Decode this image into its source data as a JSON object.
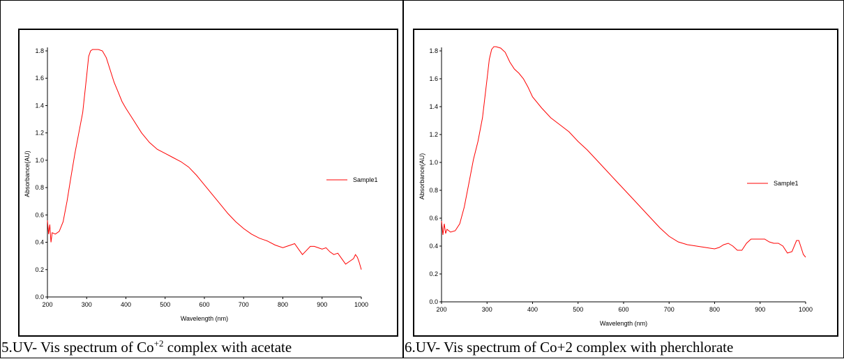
{
  "charts": [
    {
      "caption_pre": "5.UV- Vis spectrum of Co",
      "caption_sup": "+2",
      "caption_post": " complex with acetate"
    },
    {
      "caption_pre": "6.UV- Vis spectrum of Co+2 complex with pherchlorate",
      "caption_sup": "",
      "caption_post": ""
    }
  ],
  "chart_data": [
    {
      "type": "line",
      "xlabel": "Wavelength (nm)",
      "ylabel": "Absorbance(AU)",
      "xlim": [
        200,
        1000
      ],
      "ylim": [
        0.0,
        1.8
      ],
      "xticks": [
        200,
        300,
        400,
        500,
        600,
        700,
        800,
        900,
        1000
      ],
      "yticks": [
        0.0,
        0.2,
        0.4,
        0.6,
        0.8,
        1.0,
        1.2,
        1.4,
        1.6,
        1.8
      ],
      "grid": false,
      "legend_position": "right",
      "line_color": "#ff0000",
      "series": [
        {
          "name": "Sample1",
          "x": [
            200,
            203,
            206,
            209,
            212,
            220,
            230,
            240,
            250,
            260,
            270,
            280,
            290,
            300,
            305,
            310,
            315,
            320,
            330,
            340,
            350,
            360,
            370,
            380,
            390,
            400,
            420,
            440,
            460,
            480,
            500,
            520,
            540,
            560,
            580,
            600,
            620,
            640,
            660,
            680,
            700,
            720,
            740,
            760,
            780,
            800,
            810,
            820,
            830,
            840,
            850,
            860,
            870,
            880,
            890,
            900,
            910,
            920,
            930,
            940,
            950,
            960,
            970,
            980,
            985,
            990,
            995,
            1000
          ],
          "y": [
            0.56,
            0.46,
            0.53,
            0.4,
            0.47,
            0.46,
            0.48,
            0.55,
            0.7,
            0.88,
            1.05,
            1.2,
            1.35,
            1.62,
            1.76,
            1.8,
            1.81,
            1.81,
            1.81,
            1.8,
            1.75,
            1.66,
            1.57,
            1.5,
            1.43,
            1.38,
            1.29,
            1.2,
            1.13,
            1.08,
            1.05,
            1.02,
            0.99,
            0.95,
            0.89,
            0.82,
            0.75,
            0.68,
            0.61,
            0.55,
            0.5,
            0.46,
            0.43,
            0.41,
            0.38,
            0.36,
            0.37,
            0.38,
            0.39,
            0.35,
            0.31,
            0.34,
            0.37,
            0.37,
            0.36,
            0.35,
            0.36,
            0.33,
            0.31,
            0.32,
            0.28,
            0.24,
            0.26,
            0.28,
            0.31,
            0.29,
            0.25,
            0.2
          ]
        }
      ]
    },
    {
      "type": "line",
      "xlabel": "Wavelength (nm)",
      "ylabel": "Absorbance(AU)",
      "xlim": [
        200,
        1000
      ],
      "ylim": [
        0.0,
        1.8
      ],
      "xticks": [
        200,
        300,
        400,
        500,
        600,
        700,
        800,
        900,
        1000
      ],
      "yticks": [
        0.0,
        0.2,
        0.4,
        0.6,
        0.8,
        1.0,
        1.2,
        1.4,
        1.6,
        1.8
      ],
      "grid": false,
      "legend_position": "right",
      "line_color": "#ff0000",
      "series": [
        {
          "name": "Sample1",
          "x": [
            200,
            203,
            206,
            209,
            212,
            220,
            230,
            240,
            250,
            260,
            270,
            280,
            290,
            300,
            305,
            310,
            315,
            320,
            330,
            340,
            350,
            360,
            370,
            380,
            390,
            400,
            420,
            440,
            460,
            480,
            500,
            520,
            540,
            560,
            580,
            600,
            620,
            640,
            660,
            680,
            700,
            720,
            740,
            760,
            780,
            800,
            810,
            820,
            830,
            840,
            850,
            860,
            870,
            880,
            890,
            900,
            910,
            920,
            930,
            940,
            950,
            960,
            970,
            980,
            985,
            990,
            995,
            1000
          ],
          "y": [
            0.58,
            0.48,
            0.56,
            0.49,
            0.52,
            0.5,
            0.51,
            0.56,
            0.68,
            0.85,
            1.02,
            1.15,
            1.32,
            1.6,
            1.74,
            1.81,
            1.83,
            1.83,
            1.82,
            1.79,
            1.72,
            1.67,
            1.64,
            1.6,
            1.54,
            1.47,
            1.39,
            1.32,
            1.27,
            1.22,
            1.15,
            1.09,
            1.02,
            0.95,
            0.88,
            0.81,
            0.74,
            0.67,
            0.6,
            0.53,
            0.47,
            0.43,
            0.41,
            0.4,
            0.39,
            0.38,
            0.39,
            0.41,
            0.42,
            0.4,
            0.37,
            0.37,
            0.42,
            0.45,
            0.45,
            0.45,
            0.45,
            0.43,
            0.42,
            0.42,
            0.4,
            0.35,
            0.36,
            0.44,
            0.44,
            0.39,
            0.34,
            0.32
          ]
        }
      ]
    }
  ]
}
